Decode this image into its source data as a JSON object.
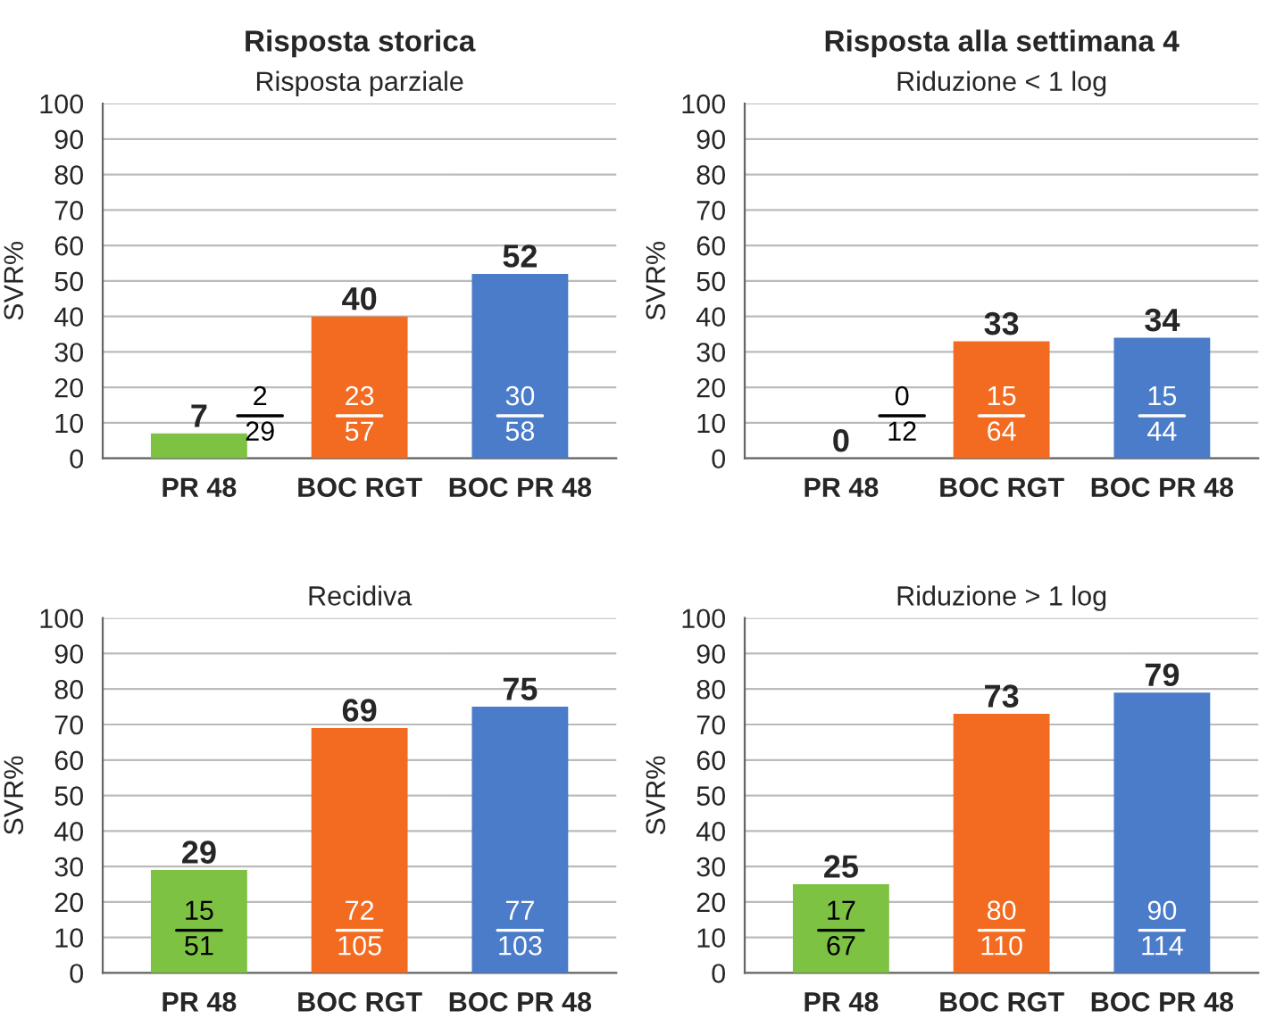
{
  "chart_data": [
    {
      "type": "bar",
      "title": "Risposta storica",
      "subtitle": "Risposta parziale",
      "ylabel": "SVR%",
      "categories": [
        "PR 48",
        "BOC RGT",
        "BOC PR 48"
      ],
      "values": [
        7,
        40,
        52
      ],
      "colors": [
        "#7dc242",
        "#f26b21",
        "#4a7cc9"
      ],
      "ylim": [
        0,
        100
      ],
      "yticks": [
        0,
        10,
        20,
        30,
        40,
        50,
        60,
        70,
        80,
        90,
        100
      ],
      "grid": "y",
      "data_labels": true,
      "annotations": [
        "2\n29",
        "23\n57",
        "30\n58"
      ]
    },
    {
      "type": "bar",
      "title": "Risposta alla settimana 4",
      "subtitle": "Riduzione < 1 log",
      "ylabel": "SVR%",
      "categories": [
        "PR 48",
        "BOC RGT",
        "BOC PR 48"
      ],
      "values": [
        0,
        33,
        34
      ],
      "colors": [
        "#7dc242",
        "#f26b21",
        "#4a7cc9"
      ],
      "ylim": [
        0,
        100
      ],
      "yticks": [
        0,
        10,
        20,
        30,
        40,
        50,
        60,
        70,
        80,
        90,
        100
      ],
      "grid": "y",
      "data_labels": true,
      "annotations": [
        "0\n12",
        "15\n64",
        "15\n44"
      ]
    },
    {
      "type": "bar",
      "subtitle": "Recidiva",
      "ylabel": "SVR%",
      "categories": [
        "PR 48",
        "BOC RGT",
        "BOC PR 48"
      ],
      "values": [
        29,
        69,
        75
      ],
      "colors": [
        "#7dc242",
        "#f26b21",
        "#4a7cc9"
      ],
      "ylim": [
        0,
        100
      ],
      "yticks": [
        0,
        10,
        20,
        30,
        40,
        50,
        60,
        70,
        80,
        90,
        100
      ],
      "grid": "y",
      "data_labels": true,
      "annotations": [
        "15\n51",
        "72\n105",
        "77\n103"
      ]
    },
    {
      "type": "bar",
      "subtitle": "Riduzione > 1 log",
      "ylabel": "SVR%",
      "categories": [
        "PR 48",
        "BOC RGT",
        "BOC PR 48"
      ],
      "values": [
        25,
        73,
        79
      ],
      "colors": [
        "#7dc242",
        "#f26b21",
        "#4a7cc9"
      ],
      "ylim": [
        0,
        100
      ],
      "yticks": [
        0,
        10,
        20,
        30,
        40,
        50,
        60,
        70,
        80,
        90,
        100
      ],
      "grid": "y",
      "data_labels": true,
      "annotations": [
        "17\n67",
        "80\n110",
        "90\n114"
      ]
    }
  ]
}
